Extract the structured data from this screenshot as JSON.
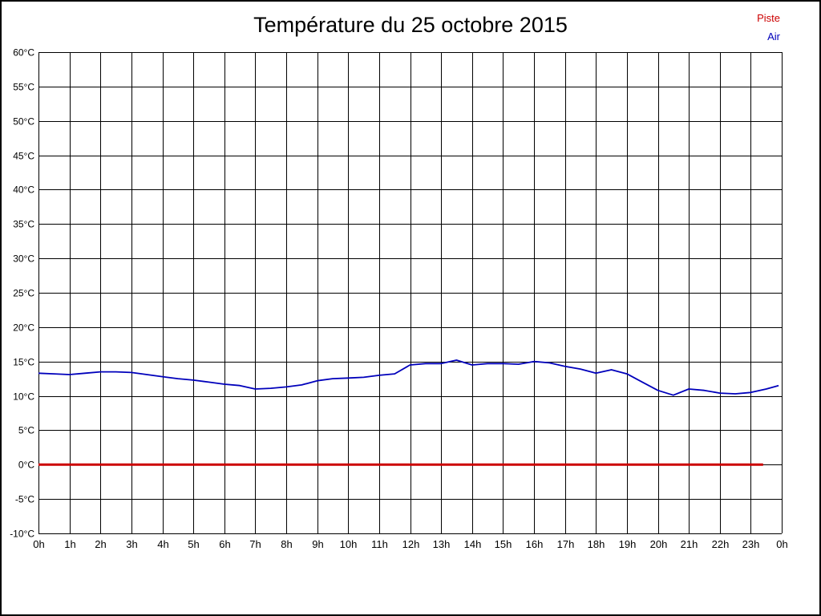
{
  "chart_data": {
    "type": "line",
    "title": "Température du 25 octobre 2015",
    "xlabel": "",
    "ylabel": "",
    "xlim": [
      0,
      24
    ],
    "ylim": [
      -10,
      60
    ],
    "grid": true,
    "legend_position": "top-right",
    "grid_color": "#000000",
    "x_tick_labels": [
      "0h",
      "1h",
      "2h",
      "3h",
      "4h",
      "5h",
      "6h",
      "7h",
      "8h",
      "9h",
      "10h",
      "11h",
      "12h",
      "13h",
      "14h",
      "15h",
      "16h",
      "17h",
      "18h",
      "19h",
      "20h",
      "21h",
      "22h",
      "23h",
      "0h"
    ],
    "y_tick_labels": [
      "60°C",
      "55°C",
      "50°C",
      "45°C",
      "40°C",
      "35°C",
      "30°C",
      "25°C",
      "20°C",
      "15°C",
      "10°C",
      "5°C",
      "0°C",
      "-5°C",
      "-10°C"
    ],
    "series": [
      {
        "name": "Piste",
        "color": "#cc0000",
        "x": [
          0,
          23.4
        ],
        "values": [
          0,
          0
        ]
      },
      {
        "name": "Air",
        "color": "#0000bb",
        "x": [
          0,
          0.5,
          1,
          1.5,
          2,
          2.5,
          3,
          3.5,
          4,
          4.5,
          5,
          5.5,
          6,
          6.5,
          7,
          7.5,
          8,
          8.5,
          9,
          9.5,
          10,
          10.5,
          11,
          11.5,
          12,
          12.5,
          13,
          13.5,
          14,
          14.5,
          15,
          15.5,
          16,
          16.5,
          17,
          17.5,
          18,
          18.5,
          19,
          19.5,
          20,
          20.5,
          21,
          21.5,
          22,
          22.5,
          23,
          23.5,
          23.9
        ],
        "values": [
          13.3,
          13.2,
          13.1,
          13.3,
          13.5,
          13.5,
          13.4,
          13.1,
          12.8,
          12.5,
          12.3,
          12.0,
          11.7,
          11.5,
          11.0,
          11.1,
          11.3,
          11.6,
          12.2,
          12.5,
          12.6,
          12.7,
          13.0,
          13.2,
          14.5,
          14.7,
          14.7,
          15.2,
          14.5,
          14.7,
          14.7,
          14.6,
          15.0,
          14.8,
          14.3,
          13.9,
          13.3,
          13.8,
          13.2,
          12.0,
          10.8,
          10.1,
          11.0,
          10.8,
          10.4,
          10.3,
          10.5,
          11.0,
          11.5
        ]
      }
    ]
  }
}
